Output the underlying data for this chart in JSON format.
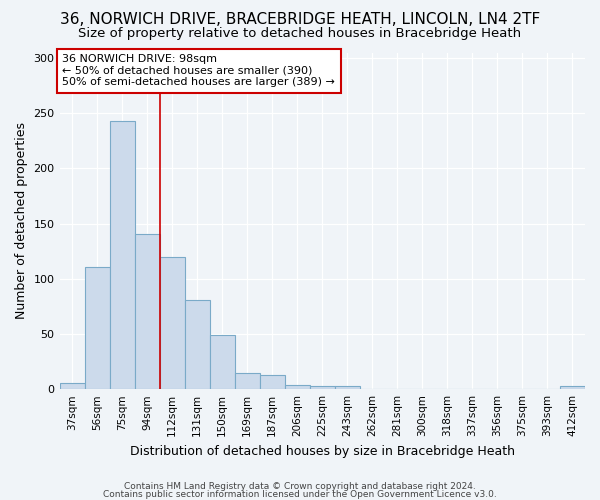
{
  "title1": "36, NORWICH DRIVE, BRACEBRIDGE HEATH, LINCOLN, LN4 2TF",
  "title2": "Size of property relative to detached houses in Bracebridge Heath",
  "xlabel": "Distribution of detached houses by size in Bracebridge Heath",
  "ylabel": "Number of detached properties",
  "categories": [
    "37sqm",
    "56sqm",
    "75sqm",
    "94sqm",
    "112sqm",
    "131sqm",
    "150sqm",
    "169sqm",
    "187sqm",
    "206sqm",
    "225sqm",
    "243sqm",
    "262sqm",
    "281sqm",
    "300sqm",
    "318sqm",
    "337sqm",
    "356sqm",
    "375sqm",
    "393sqm",
    "412sqm"
  ],
  "values": [
    6,
    111,
    243,
    141,
    120,
    81,
    49,
    15,
    13,
    4,
    3,
    3,
    0,
    0,
    0,
    0,
    0,
    0,
    0,
    0,
    3
  ],
  "bar_color": "#ccdaeb",
  "bar_edge_color": "#7aaac8",
  "red_line_index": 3,
  "ylim": [
    0,
    305
  ],
  "annotation_text_line1": "36 NORWICH DRIVE: 98sqm",
  "annotation_text_line2": "← 50% of detached houses are smaller (390)",
  "annotation_text_line3": "50% of semi-detached houses are larger (389) →",
  "annotation_box_color": "#ffffff",
  "annotation_box_edge": "#cc0000",
  "footer1": "Contains HM Land Registry data © Crown copyright and database right 2024.",
  "footer2": "Contains public sector information licensed under the Open Government Licence v3.0.",
  "bg_color": "#f0f4f8",
  "plot_bg_color": "#f0f4f8",
  "grid_color": "#ffffff",
  "title1_fontsize": 11,
  "title2_fontsize": 9.5,
  "ylabel_fontsize": 9,
  "xlabel_fontsize": 9,
  "tick_fontsize": 7.5,
  "ann_fontsize": 8,
  "footer_fontsize": 6.5
}
